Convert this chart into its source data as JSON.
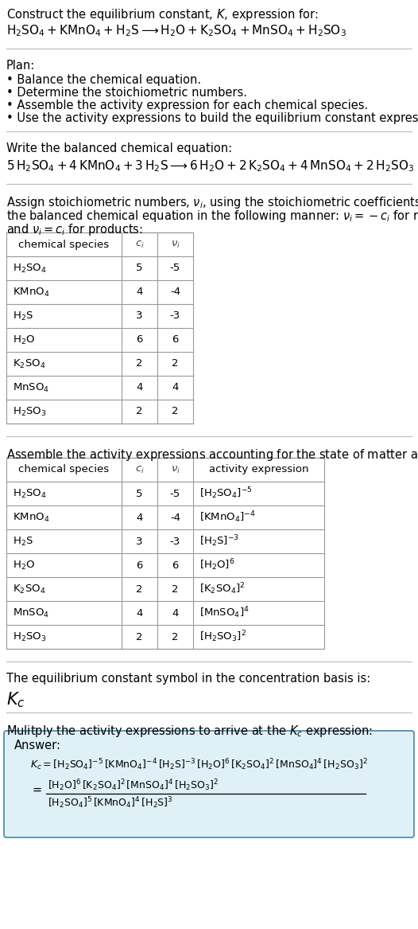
{
  "bg_color": "#ffffff",
  "table_border_color": "#999999",
  "answer_bg_color": "#dff0f7",
  "answer_border_color": "#4488aa",
  "separator_color": "#bbbbbb",
  "font_size": 10.5,
  "small_font_size": 9.5,
  "plan_items": [
    "• Balance the chemical equation.",
    "• Determine the stoichiometric numbers.",
    "• Assemble the activity expression for each chemical species.",
    "• Use the activity expressions to build the equilibrium constant expression."
  ],
  "species": [
    "H_2SO_4",
    "KMnO_4",
    "H_2S",
    "H_2O",
    "K_2SO_4",
    "MnSO_4",
    "H_2SO_3"
  ],
  "c_vals": [
    "5",
    "4",
    "3",
    "6",
    "2",
    "4",
    "2"
  ],
  "nu_vals": [
    "-5",
    "-4",
    "-3",
    "6",
    "2",
    "4",
    "2"
  ]
}
